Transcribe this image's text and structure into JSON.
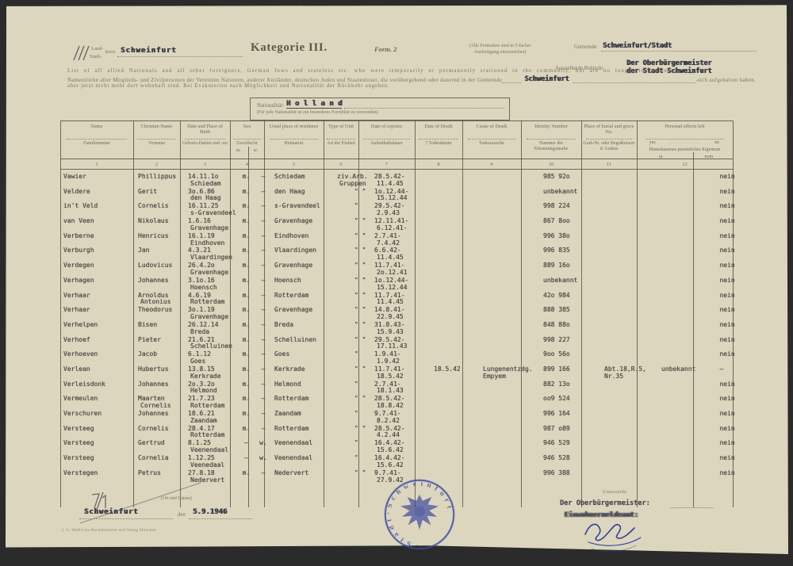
{
  "header": {
    "category_title": "Kategorie III.",
    "form_no": "Form. 2",
    "district_line1": "Land-",
    "district_line2": "Stadt-",
    "district_suffix": "kreis",
    "district_value": "Schweinfurt",
    "copies_note_1": "(Alle Formulare sind in 5-facher",
    "copies_note_2": "Ausfertigung einzureichen)",
    "gemeinde_label": "Gemeinde:",
    "gemeinde_value": "Schweinfurt/Stadt",
    "authority_label": "Ausstellende Behörde:",
    "authority_value_1": "Der Oberbürgermeister",
    "authority_value_2": "der Stadt Schweinfurt"
  },
  "intro": {
    "english": "List of all allied Nationals and all other foreigners, German Jews and stateless etc. who were temporarily or permanently stationed in the community, but are no longer in residence.",
    "german_1": "Namentliche aller Mitglieds- und Zivilpersonen der Vereinten Nationen, anderer Ausländer, deutschen Juden und Staatenloser, die vorübergehend oder dauernd in der Gemeinde",
    "german_insert": "Schweinfurt",
    "german_suffix": "-sich aufgehalten haben.",
    "german_2": "aber jetzt nicht mehr dort wohnhaft sind. Bei Evakuierten nach Möglichkeit und Nationalität der Rückkehr angeben."
  },
  "nationality_box": {
    "label": "Nationalität:",
    "value": "H o l l a n d",
    "note": "(Für jede Nationalität ist ein besonderes Formblatt zu verwenden)"
  },
  "table": {
    "columns": [
      {
        "en": "Name",
        "de": "Familienname",
        "num": "1"
      },
      {
        "en": "Christian Name",
        "de": "Vorname",
        "num": "2"
      },
      {
        "en": "Date and Place of Birth",
        "de": "Geburts-Datum und -ort",
        "num": "3"
      },
      {
        "en": "Sex",
        "de": "Geschlecht",
        "num": "4",
        "sub": {
          "left": "m.",
          "right": "w."
        }
      },
      {
        "en": "Usual place of residence",
        "de": "Heimatort",
        "num": "5"
      },
      {
        "en": "Type of Unit",
        "de": "Art der Einheit",
        "num": "6"
      },
      {
        "en": "Date of sojourn",
        "de": "Aufenthaltsdauer",
        "num": "7"
      },
      {
        "en": "Date of Death",
        "de": "† Todesdatum",
        "num": "8"
      },
      {
        "en": "Cause of Death",
        "de": "Todesursache",
        "num": "9"
      },
      {
        "en": "Identity Number",
        "de": "Nummer der Erkennungsmarke",
        "num": "10"
      },
      {
        "en": "Place of burial and grave No.",
        "de": "Grab-Nr. oder Begräbnisort d. Grabes",
        "num": "11"
      },
      {
        "en": "Personal effects left",
        "de": "Hinterlassenes persönliches Eigentum",
        "num": "12",
        "yn": {
          "yes": "yes",
          "no": "no"
        },
        "sub": {
          "left": "ja",
          "right": "nein"
        }
      }
    ],
    "rows": [
      {
        "n": "Vawier",
        "f": "Phillippus",
        "f2": "",
        "bd": "14.11.1o",
        "bp": "Schiedam",
        "sm": "m.",
        "sw": "–",
        "res": "Schiedam",
        "u1": "ziv.Arb.",
        "u2": "Gruppen",
        "a": "28.5.42-",
        "d": "11.4.45",
        "dd": "",
        "dc1": "",
        "dc2": "",
        "id": "985 92o",
        "g1": "",
        "g2": "",
        "eff": "",
        "flag": "nein"
      },
      {
        "n": "Veldere",
        "f": "Gerit",
        "f2": "",
        "bd": "3o.6.86",
        "bp": "den Haag",
        "sm": "m.",
        "sw": "–",
        "res": "den Haag",
        "u1": "\"  \"",
        "u2": "",
        "a": "1o.12.44-",
        "d": "15.12.44",
        "dd": "",
        "dc1": "",
        "dc2": "",
        "id": "unbekannt",
        "g1": "",
        "g2": "",
        "eff": "",
        "flag": "nein"
      },
      {
        "n": "in't Veld",
        "f": "Cornelis",
        "f2": "",
        "bd": "16.11.25",
        "bp": "s-Gravendeel",
        "sm": "m.",
        "sw": "–",
        "res": "s-Gravendeel",
        "u1": "\"",
        "u2": "",
        "a": "29.5.42-",
        "d": "2.9.43",
        "dd": "",
        "dc1": "",
        "dc2": "",
        "id": "998 224",
        "g1": "",
        "g2": "",
        "eff": "",
        "flag": "nein"
      },
      {
        "n": "van Veen",
        "f": "Nikolaus",
        "f2": "",
        "bd": "1.6.16",
        "bp": "Gravenhage",
        "sm": "m.",
        "sw": "–",
        "res": "Gravenhage",
        "u1": "\"  \"",
        "u2": "",
        "a": "12.11.41-",
        "d": "6.12.41-",
        "dd": "",
        "dc1": "",
        "dc2": "",
        "id": "867 8oo",
        "g1": "",
        "g2": "",
        "eff": "",
        "flag": "nein"
      },
      {
        "n": "Verberne",
        "f": "Henricus",
        "f2": "",
        "bd": "16.1.19",
        "bp": "Eindhoven",
        "sm": "m.",
        "sw": "–",
        "res": "Eindhoven",
        "u1": "\"  \"",
        "u2": "",
        "a": "2.7.41-",
        "d": "7.4.42",
        "dd": "",
        "dc1": "",
        "dc2": "",
        "id": "996 38o",
        "g1": "",
        "g2": "",
        "eff": "",
        "flag": "nein"
      },
      {
        "n": "Verburgh",
        "f": "Jan",
        "f2": "",
        "bd": "4.3.21",
        "bp": "Vlaardingen",
        "sm": "m.",
        "sw": "–",
        "res": "Vlaardingen",
        "u1": "\"  \"",
        "u2": "",
        "a": "6.6.42-",
        "d": "11.4.45",
        "dd": "",
        "dc1": "",
        "dc2": "",
        "id": "996 835",
        "g1": "",
        "g2": "",
        "eff": "",
        "flag": "nein"
      },
      {
        "n": "Verdegen",
        "f": "Ludovicus",
        "f2": "",
        "bd": "26.4.2o",
        "bp": "Gravenhage",
        "sm": "m.",
        "sw": "–",
        "res": "Gravenhage",
        "u1": "\"  \"",
        "u2": "",
        "a": "11.7.41-",
        "d": "2o.12.41",
        "dd": "",
        "dc1": "",
        "dc2": "",
        "id": "889 16o",
        "g1": "",
        "g2": "",
        "eff": "",
        "flag": "nein"
      },
      {
        "n": "Verhagen",
        "f": "Johannes",
        "f2": "",
        "bd": "3.1o.16",
        "bp": "Hoensch",
        "sm": "m.",
        "sw": "–",
        "res": "Hoensch",
        "u1": "\"  \"",
        "u2": "",
        "a": "1o.12.44-",
        "d": "15.12.44",
        "dd": "",
        "dc1": "",
        "dc2": "",
        "id": "unbekannt",
        "g1": "",
        "g2": "",
        "eff": "",
        "flag": "nein"
      },
      {
        "n": "Verhaar",
        "f": "Arnoldus",
        "f2": "Antonius",
        "bd": "4.6.19",
        "bp": "Rotterdam",
        "sm": "m.",
        "sw": "–",
        "res": "Rotterdam",
        "u1": "\"  \"",
        "u2": "",
        "a": "11.7.41-",
        "d": "11.4.45",
        "dd": "",
        "dc1": "",
        "dc2": "",
        "id": "42o 984",
        "g1": "",
        "g2": "",
        "eff": "",
        "flag": "nein"
      },
      {
        "n": "Verhaar",
        "f": "Theodorus",
        "f2": "",
        "bd": "3o.1.19",
        "bp": "Gravenhage",
        "sm": "m.",
        "sw": "–",
        "res": "Gravenhage",
        "u1": "\"  \"",
        "u2": "",
        "a": "14.8.41-",
        "d": "22.9.45",
        "dd": "",
        "dc1": "",
        "dc2": "",
        "id": "888 385",
        "g1": "",
        "g2": "",
        "eff": "",
        "flag": "nein"
      },
      {
        "n": "Verhelpen",
        "f": "Bisen",
        "f2": "",
        "bd": "26.12.14",
        "bp": "Breda",
        "sm": "m.",
        "sw": "–",
        "res": "Breda",
        "u1": "\"  \"",
        "u2": "",
        "a": "31.8.43-",
        "d": "15.9.43",
        "dd": "",
        "dc1": "",
        "dc2": "",
        "id": "848 88o",
        "g1": "",
        "g2": "",
        "eff": "",
        "flag": "nein"
      },
      {
        "n": "Verhoef",
        "f": "Pieter",
        "f2": "",
        "bd": "21.6.21",
        "bp": "Schelluinen",
        "sm": "m.",
        "sw": "–",
        "res": "Schelluinen",
        "u1": "\"  \"",
        "u2": "",
        "a": "29.5.42-",
        "d": "17.11.43",
        "dd": "",
        "dc1": "",
        "dc2": "",
        "id": "998 227",
        "g1": "",
        "g2": "",
        "eff": "",
        "flag": "nein"
      },
      {
        "n": "Verhoeven",
        "f": "Jacob",
        "f2": "",
        "bd": "6.1.12",
        "bp": "Goes",
        "sm": "m.",
        "sw": "–",
        "res": "Goes",
        "u1": "\"",
        "u2": "",
        "a": "1.9.41-",
        "d": "1.9.42",
        "dd": "",
        "dc1": "",
        "dc2": "",
        "id": "9oo 56o",
        "g1": "",
        "g2": "",
        "eff": "",
        "flag": "nein"
      },
      {
        "n": "Verlean",
        "f": "Hubertus",
        "f2": "",
        "bd": "13.8.15",
        "bp": "Kerkrade",
        "sm": "m.",
        "sw": "–",
        "res": "Kerkrade",
        "u1": "\"  \"",
        "u2": "",
        "a": "11.7.41-",
        "d": "18.5.42",
        "dd": "18.5.42",
        "dc1": "Lungenentzdg.",
        "dc2": "Empyem",
        "id": "899 166",
        "g1": "Abt.18,R.5,",
        "g2": "Nr.35",
        "eff": "unbekannt",
        "flag": "–"
      },
      {
        "n": "Verleisdonk",
        "f": "Johannes",
        "f2": "",
        "bd": "2o.3.2o",
        "bp": "Helmond",
        "sm": "m.",
        "sw": "–",
        "res": "Helmond",
        "u1": "\"",
        "u2": "",
        "a": "2.7.41-",
        "d": "18.1.43",
        "dd": "",
        "dc1": "",
        "dc2": "",
        "id": "882 13o",
        "g1": "",
        "g2": "",
        "eff": "",
        "flag": "nein"
      },
      {
        "n": "Vermeulen",
        "f": "Maarten",
        "f2": "Cornelis",
        "bd": "21.7.23",
        "bp": "Rotterdam",
        "sm": "m.",
        "sw": "–",
        "res": "Rotterdam",
        "u1": "\"  \"",
        "u2": "",
        "a": "28.5.42-",
        "d": "18.8.42",
        "dd": "",
        "dc1": "",
        "dc2": "",
        "id": "oo9 524",
        "g1": "",
        "g2": "",
        "eff": "",
        "flag": "nein"
      },
      {
        "n": "Verschuren",
        "f": "Johannes",
        "f2": "",
        "bd": "18.6.21",
        "bp": "Zaandam",
        "sm": "m.",
        "sw": "–",
        "res": "Zaandam",
        "u1": "\"",
        "u2": "",
        "a": "9.7.41-",
        "d": "8.2.42",
        "dd": "",
        "dc1": "",
        "dc2": "",
        "id": "996 164",
        "g1": "",
        "g2": "",
        "eff": "",
        "flag": "nein"
      },
      {
        "n": "Versteeg",
        "f": "Cornelis",
        "f2": "",
        "bd": "28.4.17",
        "bp": "Rotterdam",
        "sm": "m.",
        "sw": "–",
        "res": "Rotterdam",
        "u1": "\"  \"",
        "u2": "",
        "a": "28.5.42-",
        "d": "4.2.44",
        "dd": "",
        "dc1": "",
        "dc2": "",
        "id": "987 o89",
        "g1": "",
        "g2": "",
        "eff": "",
        "flag": "nein"
      },
      {
        "n": "Versteeg",
        "f": "Gertrud",
        "f2": "",
        "bd": "8.1.25",
        "bp": "Veenendaal",
        "sm": "–",
        "sw": "w.",
        "res": "Veenendaal",
        "u1": "\"",
        "u2": "",
        "a": "16.4.42-",
        "d": "15.6.42",
        "dd": "",
        "dc1": "",
        "dc2": "",
        "id": "946 529",
        "g1": "",
        "g2": "",
        "eff": "",
        "flag": "nein"
      },
      {
        "n": "Versteeg",
        "f": "Cornelia",
        "f2": "",
        "bd": "1.12.25",
        "bp": "Veenedaal",
        "sm": "–",
        "sw": "w.",
        "res": "Veenendaal",
        "u1": "\"",
        "u2": "",
        "a": "16.4.42-",
        "d": "15.6.42",
        "dd": "",
        "dc1": "",
        "dc2": "",
        "id": "946 528",
        "g1": "",
        "g2": "",
        "eff": "",
        "flag": "nein"
      },
      {
        "n": "Verstegen",
        "f": "Petrus",
        "f2": "",
        "bd": "27.8.18",
        "bp": "Nedervert",
        "sm": "m.",
        "sw": "–",
        "res": "Nedervert",
        "u1": "\"  \"",
        "u2": "",
        "a": "9.7.41-",
        "d": "27.9.42",
        "dd": "",
        "dc1": "",
        "dc2": "",
        "id": "996 388",
        "g1": "",
        "g2": "",
        "eff": "",
        "flag": "nein"
      }
    ]
  },
  "footer": {
    "place_date_label": "(Ort und Datum)",
    "place_value": "Schweinfurt",
    "den_label": "den",
    "date_value": "5.9.1946",
    "imprint": "J. G. Weiß'sche Buchdruckerei und Verlag München",
    "signature_label": "(Unterschrift)",
    "signer_title": "Der Oberbürgermeister:",
    "signer_office": "Einwohnermeldeamt:",
    "handwritten_mark": "7/1",
    "handwritten_slashes": "///"
  },
  "stamp": {
    "ring_text": "· S t a d t ·  S c h w e i n f u r t",
    "color": "#3b499e"
  },
  "colors": {
    "paper": "#dcd6be",
    "typewriter_ink": "#494840",
    "printed_ink": "#7b7463",
    "stamp_blue": "#3b499e",
    "background": "#343434"
  }
}
